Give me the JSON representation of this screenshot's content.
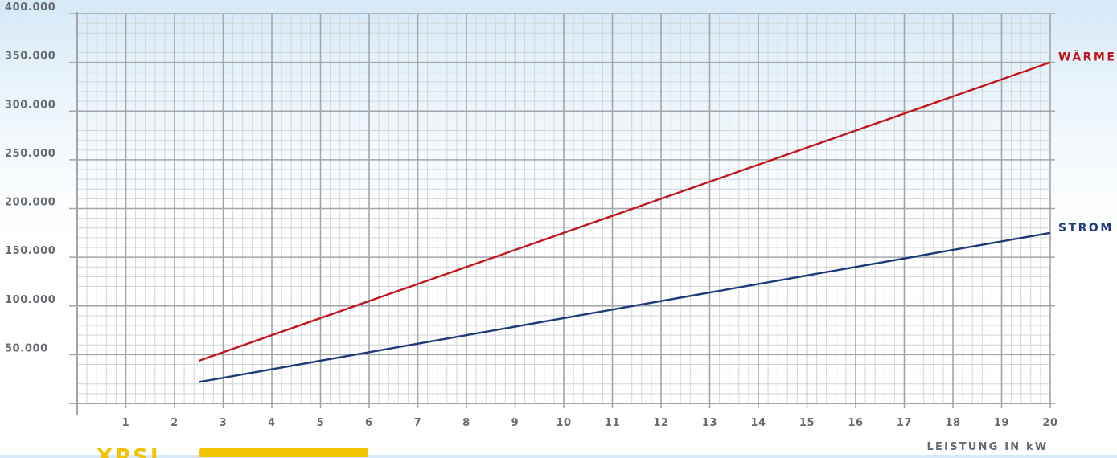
{
  "chart_data": {
    "type": "line",
    "x_ticks": [
      "1",
      "2",
      "3",
      "4",
      "5",
      "6",
      "7",
      "8",
      "9",
      "10",
      "11",
      "12",
      "13",
      "14",
      "15",
      "16",
      "17",
      "18",
      "19",
      "20"
    ],
    "y_ticks": [
      "50.000",
      "100.000",
      "150.000",
      "200.000",
      "250.000",
      "300.000",
      "350.000",
      "400.000"
    ],
    "xlim": [
      0,
      20
    ],
    "ylim": [
      0,
      400000
    ],
    "grid": true,
    "xlabel": "LEISTUNG IN kW",
    "ylabel": "",
    "series": [
      {
        "name": "WÄRME",
        "color": "#c0161c",
        "x": [
          2.5,
          20
        ],
        "y": [
          43750,
          350000
        ]
      },
      {
        "name": "STROM",
        "color": "#1f3a7a",
        "x": [
          2.5,
          20
        ],
        "y": [
          21875,
          175000
        ]
      }
    ]
  },
  "colors": {
    "grid_major": "#a3a5a8",
    "grid_minor": "#d2d4d6",
    "logo_yellow": "#f5c400"
  }
}
